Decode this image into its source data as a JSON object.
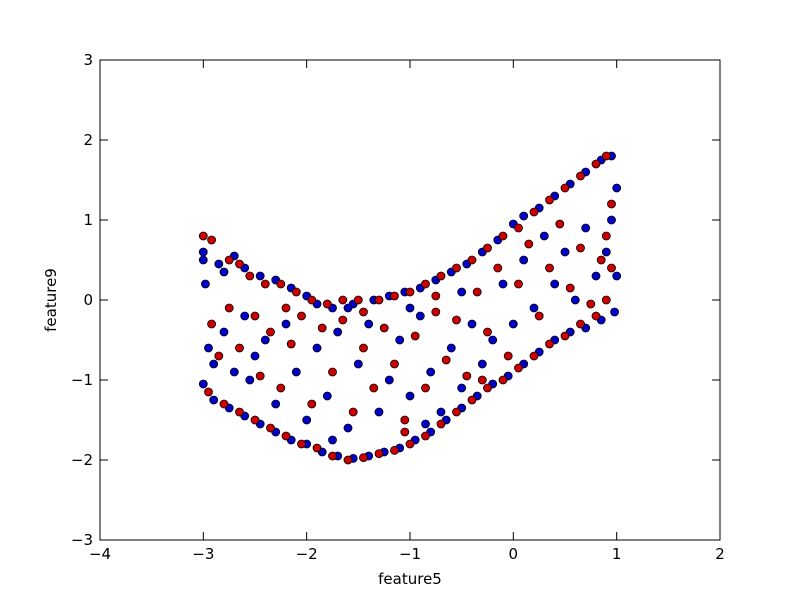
{
  "chart_data": {
    "type": "scatter",
    "title": "",
    "xlabel": "feature5",
    "ylabel": "feature9",
    "xlim": [
      -4,
      2
    ],
    "ylim": [
      -3,
      3
    ],
    "xticks": [
      -4,
      -3,
      -2,
      -1,
      0,
      1,
      2
    ],
    "yticks": [
      -3,
      -2,
      -1,
      0,
      1,
      2,
      3
    ],
    "xtick_labels": [
      "−4",
      "−3",
      "−2",
      "−1",
      "0",
      "1",
      "2"
    ],
    "ytick_labels": [
      "−3",
      "−2",
      "−1",
      "0",
      "1",
      "2",
      "3"
    ],
    "grid": false,
    "legend": "none",
    "colors": {
      "class_a": "#0000cc",
      "class_b": "#cc0000",
      "edge": "#000000"
    },
    "series": [
      {
        "color": "#0000cc",
        "points": [
          [
            -3.0,
            0.5
          ],
          [
            -3.0,
            0.6
          ],
          [
            -2.98,
            0.2
          ],
          [
            -2.85,
            0.45
          ],
          [
            -2.8,
            0.35
          ],
          [
            -2.7,
            0.55
          ],
          [
            -2.6,
            0.4
          ],
          [
            -2.45,
            0.3
          ],
          [
            -2.3,
            0.25
          ],
          [
            -2.15,
            0.15
          ],
          [
            -2.0,
            0.05
          ],
          [
            -1.9,
            -0.05
          ],
          [
            -1.75,
            -0.1
          ],
          [
            -1.55,
            -0.05
          ],
          [
            -1.35,
            0.0
          ],
          [
            -1.2,
            0.05
          ],
          [
            -1.05,
            0.1
          ],
          [
            -0.9,
            0.15
          ],
          [
            -0.75,
            0.25
          ],
          [
            -0.6,
            0.35
          ],
          [
            -0.45,
            0.45
          ],
          [
            -0.3,
            0.6
          ],
          [
            -0.15,
            0.75
          ],
          [
            0.0,
            0.95
          ],
          [
            0.1,
            1.05
          ],
          [
            0.25,
            1.15
          ],
          [
            0.4,
            1.3
          ],
          [
            0.55,
            1.45
          ],
          [
            0.7,
            1.6
          ],
          [
            0.85,
            1.75
          ],
          [
            0.95,
            1.8
          ],
          [
            1.0,
            1.4
          ],
          [
            0.95,
            1.0
          ],
          [
            0.9,
            0.6
          ],
          [
            1.0,
            0.3
          ],
          [
            0.98,
            -0.15
          ],
          [
            0.85,
            -0.25
          ],
          [
            0.7,
            -0.35
          ],
          [
            0.55,
            -0.4
          ],
          [
            0.4,
            -0.5
          ],
          [
            0.25,
            -0.65
          ],
          [
            0.1,
            -0.8
          ],
          [
            -0.05,
            -0.95
          ],
          [
            -0.2,
            -1.05
          ],
          [
            -0.35,
            -1.2
          ],
          [
            -0.5,
            -1.35
          ],
          [
            -0.65,
            -1.5
          ],
          [
            -0.8,
            -1.65
          ],
          [
            -0.95,
            -1.75
          ],
          [
            -1.1,
            -1.85
          ],
          [
            -1.25,
            -1.9
          ],
          [
            -1.4,
            -1.95
          ],
          [
            -1.55,
            -1.98
          ],
          [
            -1.7,
            -1.95
          ],
          [
            -1.85,
            -1.9
          ],
          [
            -2.0,
            -1.8
          ],
          [
            -2.15,
            -1.75
          ],
          [
            -2.3,
            -1.65
          ],
          [
            -2.45,
            -1.55
          ],
          [
            -2.6,
            -1.45
          ],
          [
            -2.75,
            -1.35
          ],
          [
            -2.9,
            -1.25
          ],
          [
            -3.0,
            -1.05
          ],
          [
            -2.95,
            -0.6
          ],
          [
            -2.9,
            -0.8
          ],
          [
            -2.8,
            -0.4
          ],
          [
            -2.7,
            -0.9
          ],
          [
            -2.6,
            -0.2
          ],
          [
            -2.55,
            -1.0
          ],
          [
            -2.4,
            -0.5
          ],
          [
            -2.3,
            -1.3
          ],
          [
            -2.2,
            -0.3
          ],
          [
            -2.1,
            -0.9
          ],
          [
            -2.0,
            -1.5
          ],
          [
            -1.9,
            -0.6
          ],
          [
            -1.8,
            -1.2
          ],
          [
            -1.7,
            -0.4
          ],
          [
            -1.6,
            -1.6
          ],
          [
            -1.5,
            -0.8
          ],
          [
            -1.4,
            -0.3
          ],
          [
            -1.3,
            -1.4
          ],
          [
            -1.2,
            -1.0
          ],
          [
            -1.1,
            -0.5
          ],
          [
            -1.0,
            -1.2
          ],
          [
            -0.9,
            -0.2
          ],
          [
            -0.8,
            -0.9
          ],
          [
            -0.7,
            -1.4
          ],
          [
            -0.6,
            -0.6
          ],
          [
            -0.5,
            -1.1
          ],
          [
            -0.4,
            -0.3
          ],
          [
            -0.3,
            -0.8
          ],
          [
            -0.2,
            -0.5
          ],
          [
            -0.1,
            0.2
          ],
          [
            0.0,
            -0.3
          ],
          [
            0.1,
            0.5
          ],
          [
            0.2,
            -0.1
          ],
          [
            0.3,
            0.8
          ],
          [
            0.4,
            0.2
          ],
          [
            0.5,
            0.6
          ],
          [
            0.6,
            0.0
          ],
          [
            0.7,
            0.9
          ],
          [
            0.8,
            0.3
          ],
          [
            -1.6,
            -0.1
          ],
          [
            -1.0,
            -0.1
          ],
          [
            -0.5,
            0.1
          ],
          [
            -2.5,
            -0.7
          ],
          [
            -1.75,
            -1.75
          ],
          [
            -0.85,
            -1.55
          ]
        ]
      },
      {
        "color": "#cc0000",
        "points": [
          [
            -3.0,
            0.8
          ],
          [
            -2.92,
            0.75
          ],
          [
            -2.75,
            0.5
          ],
          [
            -2.65,
            0.45
          ],
          [
            -2.55,
            0.3
          ],
          [
            -2.4,
            0.2
          ],
          [
            -2.25,
            0.2
          ],
          [
            -2.1,
            0.1
          ],
          [
            -1.95,
            0.0
          ],
          [
            -1.8,
            -0.05
          ],
          [
            -1.65,
            0.0
          ],
          [
            -1.5,
            0.0
          ],
          [
            -1.3,
            0.0
          ],
          [
            -1.15,
            0.05
          ],
          [
            -1.0,
            0.1
          ],
          [
            -0.85,
            0.2
          ],
          [
            -0.7,
            0.3
          ],
          [
            -0.55,
            0.4
          ],
          [
            -0.4,
            0.5
          ],
          [
            -0.25,
            0.65
          ],
          [
            -0.1,
            0.8
          ],
          [
            0.05,
            0.9
          ],
          [
            0.2,
            1.1
          ],
          [
            0.35,
            1.25
          ],
          [
            0.5,
            1.4
          ],
          [
            0.65,
            1.55
          ],
          [
            0.8,
            1.7
          ],
          [
            0.9,
            1.8
          ],
          [
            0.95,
            1.2
          ],
          [
            0.9,
            0.8
          ],
          [
            0.95,
            0.4
          ],
          [
            0.9,
            0.0
          ],
          [
            0.8,
            -0.2
          ],
          [
            0.65,
            -0.3
          ],
          [
            0.5,
            -0.45
          ],
          [
            0.35,
            -0.55
          ],
          [
            0.2,
            -0.7
          ],
          [
            0.05,
            -0.85
          ],
          [
            -0.1,
            -1.0
          ],
          [
            -0.25,
            -1.1
          ],
          [
            -0.4,
            -1.25
          ],
          [
            -0.55,
            -1.4
          ],
          [
            -0.7,
            -1.55
          ],
          [
            -0.85,
            -1.7
          ],
          [
            -1.0,
            -1.8
          ],
          [
            -1.15,
            -1.88
          ],
          [
            -1.3,
            -1.92
          ],
          [
            -1.45,
            -1.97
          ],
          [
            -1.6,
            -2.0
          ],
          [
            -1.75,
            -1.95
          ],
          [
            -1.9,
            -1.85
          ],
          [
            -2.05,
            -1.8
          ],
          [
            -2.2,
            -1.7
          ],
          [
            -2.35,
            -1.6
          ],
          [
            -2.5,
            -1.5
          ],
          [
            -2.65,
            -1.4
          ],
          [
            -2.8,
            -1.3
          ],
          [
            -2.95,
            -1.15
          ],
          [
            -2.92,
            -0.3
          ],
          [
            -2.85,
            -0.7
          ],
          [
            -2.75,
            -0.1
          ],
          [
            -2.65,
            -0.6
          ],
          [
            -2.5,
            -0.2
          ],
          [
            -2.45,
            -0.95
          ],
          [
            -2.35,
            -0.4
          ],
          [
            -2.25,
            -1.1
          ],
          [
            -2.15,
            -0.55
          ],
          [
            -2.05,
            -0.2
          ],
          [
            -1.95,
            -1.3
          ],
          [
            -1.85,
            -0.35
          ],
          [
            -1.75,
            -0.9
          ],
          [
            -1.65,
            -0.25
          ],
          [
            -1.55,
            -1.4
          ],
          [
            -1.45,
            -0.6
          ],
          [
            -1.35,
            -1.1
          ],
          [
            -1.25,
            -0.35
          ],
          [
            -1.15,
            -0.8
          ],
          [
            -1.05,
            -1.5
          ],
          [
            -0.95,
            -0.45
          ],
          [
            -0.85,
            -1.1
          ],
          [
            -0.75,
            -0.15
          ],
          [
            -0.65,
            -0.75
          ],
          [
            -0.55,
            -0.25
          ],
          [
            -0.45,
            -0.95
          ],
          [
            -0.35,
            0.1
          ],
          [
            -0.25,
            -0.4
          ],
          [
            -0.15,
            0.4
          ],
          [
            -0.05,
            -0.7
          ],
          [
            0.05,
            0.2
          ],
          [
            0.15,
            0.7
          ],
          [
            0.25,
            -0.2
          ],
          [
            0.35,
            0.4
          ],
          [
            0.45,
            0.95
          ],
          [
            0.55,
            0.15
          ],
          [
            0.65,
            0.65
          ],
          [
            0.75,
            -0.05
          ],
          [
            0.85,
            0.5
          ],
          [
            -1.45,
            -0.15
          ],
          [
            -0.75,
            0.05
          ],
          [
            -2.2,
            -0.1
          ],
          [
            -1.05,
            -1.65
          ],
          [
            -0.3,
            -1.0
          ]
        ]
      }
    ]
  }
}
